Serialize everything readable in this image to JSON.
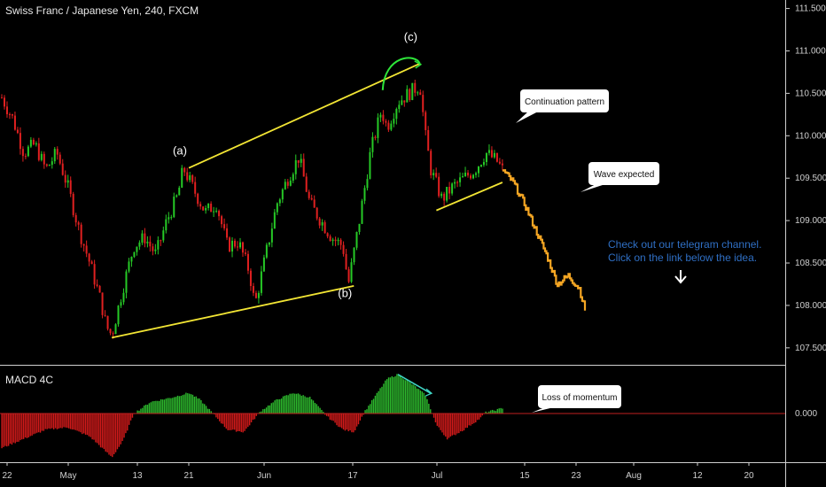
{
  "chart_data": {
    "type": "candlestick",
    "title": "Swiss Franc / Japanese Yen, 240, FXCM",
    "price_axis": {
      "ylim": [
        107.3,
        111.6
      ],
      "ticks": [
        "107.500",
        "108.000",
        "108.500",
        "109.000",
        "109.500",
        "110.000",
        "110.500",
        "111.000",
        "111.500"
      ]
    },
    "x_ticks": [
      "22",
      "May",
      "13",
      "21",
      "Jun",
      "17",
      "Jul",
      "15",
      "23",
      "Aug",
      "12",
      "20"
    ],
    "price_path": [
      {
        "day": 0,
        "close": 110.45
      },
      {
        "day": 2,
        "close": 110.2
      },
      {
        "day": 4,
        "close": 109.8
      },
      {
        "day": 6,
        "close": 109.9
      },
      {
        "day": 8,
        "close": 109.6
      },
      {
        "day": 10,
        "close": 109.8
      },
      {
        "day": 12,
        "close": 109.4
      },
      {
        "day": 14,
        "close": 108.9
      },
      {
        "day": 16,
        "close": 108.5
      },
      {
        "day": 18,
        "close": 108.05
      },
      {
        "day": 19,
        "close": 107.75
      },
      {
        "day": 20,
        "close": 107.65
      },
      {
        "day": 22,
        "close": 108.2
      },
      {
        "day": 24,
        "close": 108.7
      },
      {
        "day": 26,
        "close": 108.8
      },
      {
        "day": 28,
        "close": 108.6
      },
      {
        "day": 30,
        "close": 109.0
      },
      {
        "day": 32,
        "close": 109.3
      },
      {
        "day": 33,
        "close": 109.62
      },
      {
        "day": 35,
        "close": 109.35
      },
      {
        "day": 37,
        "close": 109.1
      },
      {
        "day": 39,
        "close": 109.2
      },
      {
        "day": 41,
        "close": 108.7
      },
      {
        "day": 43,
        "close": 108.75
      },
      {
        "day": 45,
        "close": 108.4
      },
      {
        "day": 46,
        "close": 108.0
      },
      {
        "day": 48,
        "close": 108.6
      },
      {
        "day": 50,
        "close": 109.2
      },
      {
        "day": 52,
        "close": 109.5
      },
      {
        "day": 54,
        "close": 109.75
      },
      {
        "day": 56,
        "close": 109.2
      },
      {
        "day": 58,
        "close": 109.0
      },
      {
        "day": 60,
        "close": 108.8
      },
      {
        "day": 62,
        "close": 108.7
      },
      {
        "day": 63,
        "close": 108.25
      },
      {
        "day": 65,
        "close": 109.0
      },
      {
        "day": 67,
        "close": 109.8
      },
      {
        "day": 69,
        "close": 110.3
      },
      {
        "day": 70,
        "close": 110.1
      },
      {
        "day": 72,
        "close": 110.4
      },
      {
        "day": 74,
        "close": 110.5
      },
      {
        "day": 76,
        "close": 110.6
      },
      {
        "day": 77,
        "close": 110.0
      },
      {
        "day": 78,
        "close": 109.6
      },
      {
        "day": 80,
        "close": 109.25
      },
      {
        "day": 82,
        "close": 109.4
      },
      {
        "day": 84,
        "close": 109.5
      },
      {
        "day": 86,
        "close": 109.6
      },
      {
        "day": 88,
        "close": 109.8
      },
      {
        "day": 90,
        "close": 109.7
      },
      {
        "day": 91,
        "close": 109.6
      }
    ],
    "projection": [
      {
        "day": 91,
        "close": 109.6
      },
      {
        "day": 93,
        "close": 109.45
      },
      {
        "day": 95,
        "close": 109.2
      },
      {
        "day": 97,
        "close": 108.9
      },
      {
        "day": 99,
        "close": 108.6
      },
      {
        "day": 101,
        "close": 108.25
      },
      {
        "day": 103,
        "close": 108.35
      },
      {
        "day": 105,
        "close": 108.2
      },
      {
        "day": 106,
        "close": 107.95
      }
    ],
    "trendlines": [
      {
        "from": {
          "day": 20,
          "price": 107.62
        },
        "to": {
          "day": 64,
          "price": 108.23
        }
      },
      {
        "from": {
          "day": 34,
          "price": 109.62
        },
        "to": {
          "day": 76,
          "price": 110.85
        }
      },
      {
        "from": {
          "day": 79,
          "price": 109.12
        },
        "to": {
          "day": 91,
          "price": 109.45
        }
      }
    ],
    "wave_labels": [
      {
        "text": "(a)",
        "day": 34,
        "price": 109.78
      },
      {
        "text": "(b)",
        "day": 64,
        "price": 108.1
      },
      {
        "text": "(c)",
        "day": 76,
        "price": 111.12
      }
    ],
    "callouts": [
      {
        "text": "Continuation pattern",
        "day": 97,
        "price": 110.45
      },
      {
        "text": "Wave expected",
        "day": 107,
        "price": 109.55
      },
      {
        "text": "Loss of momentum",
        "day": 100,
        "macd": 0.0
      }
    ],
    "annotation": {
      "line1": "Check out our telegram channel.",
      "line2": "Click on the link below the idea."
    },
    "indicator": {
      "name": "MACD 4C",
      "zero_label": "0.000",
      "ylim": [
        -1.0,
        1.0
      ],
      "histogram": [
        {
          "day": 0,
          "value": -0.75
        },
        {
          "day": 4,
          "value": -0.55
        },
        {
          "day": 8,
          "value": -0.35
        },
        {
          "day": 12,
          "value": -0.3
        },
        {
          "day": 16,
          "value": -0.5
        },
        {
          "day": 20,
          "value": -0.95
        },
        {
          "day": 22,
          "value": -0.6
        },
        {
          "day": 24,
          "value": 0.0
        },
        {
          "day": 27,
          "value": 0.25
        },
        {
          "day": 31,
          "value": 0.35
        },
        {
          "day": 34,
          "value": 0.45
        },
        {
          "day": 36,
          "value": 0.3
        },
        {
          "day": 38,
          "value": 0.05
        },
        {
          "day": 41,
          "value": -0.35
        },
        {
          "day": 44,
          "value": -0.4
        },
        {
          "day": 47,
          "value": 0.05
        },
        {
          "day": 50,
          "value": 0.3
        },
        {
          "day": 53,
          "value": 0.45
        },
        {
          "day": 56,
          "value": 0.35
        },
        {
          "day": 59,
          "value": -0.05
        },
        {
          "day": 62,
          "value": -0.35
        },
        {
          "day": 64,
          "value": -0.4
        },
        {
          "day": 66,
          "value": 0.05
        },
        {
          "day": 68,
          "value": 0.4
        },
        {
          "day": 70,
          "value": 0.75
        },
        {
          "day": 72,
          "value": 0.85
        },
        {
          "day": 75,
          "value": 0.6
        },
        {
          "day": 77,
          "value": 0.4
        },
        {
          "day": 79,
          "value": -0.25
        },
        {
          "day": 81,
          "value": -0.55
        },
        {
          "day": 84,
          "value": -0.35
        },
        {
          "day": 87,
          "value": -0.1
        },
        {
          "day": 88,
          "value": 0.03
        },
        {
          "day": 90,
          "value": 0.08
        },
        {
          "day": 91,
          "value": 0.12
        }
      ]
    },
    "colors": {
      "background": "#000000",
      "candle_up": "#26c926",
      "candle_down": "#e02020",
      "projection": "#f5a623",
      "trendline": "#f2e534",
      "wave_arc": "#2ee63a",
      "macd_up": "#2db82d",
      "macd_down": "#d21a1a",
      "annotation": "#2f6fc4"
    }
  }
}
